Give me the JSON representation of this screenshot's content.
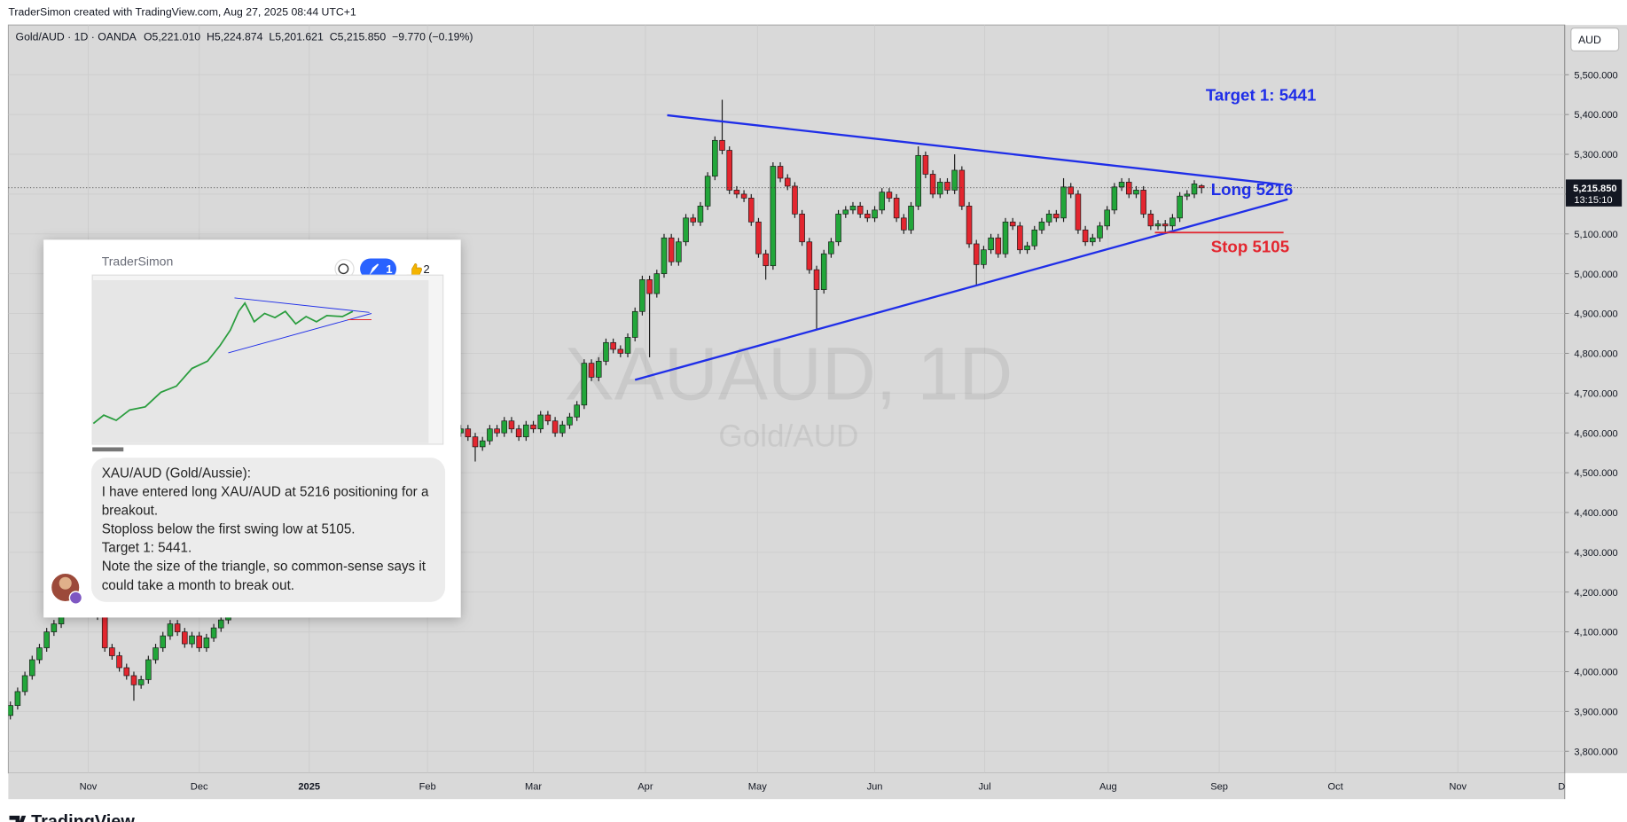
{
  "header": {
    "credit": "TraderSimon created with TradingView.com, Aug 27, 2025 08:44 UTC+1"
  },
  "chart_data": {
    "type": "candlestick",
    "title": "Gold/AUD · 1D · OANDA",
    "ohlc_legend": [
      {
        "key": "O",
        "value": "5,221.010"
      },
      {
        "key": "H",
        "value": "5,224.874"
      },
      {
        "key": "L",
        "value": "5,201.621"
      },
      {
        "key": "C",
        "value": "5,215.850"
      }
    ],
    "change": "−9.770 (−0.19%)",
    "watermark": "XAUAUD, 1D",
    "watermark_subtitle": "Gold/AUD",
    "currency": "AUD",
    "last_price": {
      "value": 5215.85,
      "label": "5,215.850"
    },
    "countdown": "13:15:10",
    "ylim": [
      3745,
      5625
    ],
    "yticks": [
      {
        "value": 3800,
        "label": "3,800.000"
      },
      {
        "value": 3900,
        "label": "3,900.000"
      },
      {
        "value": 4000,
        "label": "4,000.000"
      },
      {
        "value": 4100,
        "label": "4,100.000"
      },
      {
        "value": 4200,
        "label": "4,200.000"
      },
      {
        "value": 4300,
        "label": "4,300.000"
      },
      {
        "value": 4400,
        "label": "4,400.000"
      },
      {
        "value": 4500,
        "label": "4,500.000"
      },
      {
        "value": 4600,
        "label": "4,600.000"
      },
      {
        "value": 4700,
        "label": "4,700.000"
      },
      {
        "value": 4800,
        "label": "4,800.000"
      },
      {
        "value": 4900,
        "label": "4,900.000"
      },
      {
        "value": 5000,
        "label": "5,000.000"
      },
      {
        "value": 5100,
        "label": "5,100.000"
      },
      {
        "value": 5200,
        "label": "5,200.000"
      },
      {
        "value": 5300,
        "label": "5,300.000"
      },
      {
        "value": 5400,
        "label": "5,400.000"
      },
      {
        "value": 5500,
        "label": "5,500.000"
      }
    ],
    "xtick_labels": [
      "Nov",
      "Dec",
      "2025",
      "Feb",
      "Mar",
      "Apr",
      "May",
      "Jun",
      "Jul",
      "Aug",
      "Sep",
      "Oct",
      "Nov",
      "Dec"
    ],
    "grid": true,
    "up_color": "#22a63a",
    "down_color": "#e3262f",
    "series": [
      {
        "name": "Gold/AUD",
        "open": [
          3890,
          3915,
          3950,
          3990,
          4030,
          4060,
          4100,
          4120,
          4150,
          4170,
          4150,
          4180,
          4160,
          4140,
          4060,
          4040,
          4010,
          3990,
          3967,
          3980,
          4030,
          4060,
          4090,
          4120,
          4100,
          4070,
          4090,
          4060,
          4085,
          4110,
          4130,
          4150,
          4175,
          4190,
          4210,
          4200,
          4230,
          4250,
          4240,
          4270,
          4290,
          4300,
          4320,
          4310,
          4340,
          4360,
          4350,
          4380,
          4400,
          4420,
          4430,
          4450,
          4470,
          4460,
          4490,
          4510,
          4530,
          4520,
          4550,
          4560,
          4590,
          4620,
          4600,
          4610,
          4590,
          4565,
          4580,
          4610,
          4600,
          4630,
          4610,
          4590,
          4620,
          4610,
          4645,
          4630,
          4600,
          4620,
          4640,
          4670,
          4775,
          4740,
          4780,
          4827,
          4810,
          4800,
          4840,
          4905,
          4985,
          4950,
          5000,
          5090,
          5030,
          5080,
          5140,
          5130,
          5170,
          5245,
          5335,
          5310,
          5210,
          5200,
          5190,
          5130,
          5050,
          5020,
          5270,
          5240,
          5220,
          5150,
          5080,
          5010,
          4960,
          5050,
          5080,
          5150,
          5160,
          5170,
          5150,
          5140,
          5160,
          5205,
          5190,
          5140,
          5110,
          5170,
          5297,
          5250,
          5200,
          5230,
          5210,
          5260,
          5170,
          5075,
          5023,
          5060,
          5090,
          5050,
          5130,
          5120,
          5060,
          5070,
          5110,
          5130,
          5150,
          5140,
          5218,
          5200,
          5110,
          5080,
          5090,
          5120,
          5160,
          5218,
          5230,
          5200,
          5210,
          5150,
          5120,
          5125,
          5120,
          5140,
          5195,
          5200,
          5221.01
        ],
        "high": [
          3925,
          3960,
          4000,
          4040,
          4070,
          4110,
          4130,
          4160,
          4180,
          4180,
          4190,
          4190,
          4170,
          4150,
          4070,
          4050,
          4020,
          4000,
          3990,
          4040,
          4070,
          4100,
          4130,
          4130,
          4110,
          4100,
          4100,
          4095,
          4120,
          4140,
          4160,
          4185,
          4200,
          4220,
          4220,
          4240,
          4260,
          4260,
          4280,
          4300,
          4310,
          4330,
          4330,
          4350,
          4370,
          4370,
          4390,
          4410,
          4430,
          4440,
          4460,
          4480,
          4480,
          4500,
          4520,
          4540,
          4540,
          4560,
          4570,
          4600,
          4630,
          4630,
          4620,
          4620,
          4600,
          4590,
          4620,
          4620,
          4640,
          4640,
          4620,
          4630,
          4630,
          4655,
          4655,
          4640,
          4630,
          4650,
          4680,
          4785,
          4785,
          4790,
          4837,
          4837,
          4820,
          4850,
          4915,
          4995,
          4995,
          5010,
          5100,
          5100,
          5090,
          5150,
          5150,
          5180,
          5255,
          5345,
          5437,
          5320,
          5220,
          5210,
          5200,
          5140,
          5060,
          5280,
          5280,
          5250,
          5230,
          5160,
          5090,
          5020,
          5060,
          5090,
          5160,
          5170,
          5180,
          5180,
          5160,
          5170,
          5215,
          5215,
          5200,
          5150,
          5180,
          5320,
          5307,
          5260,
          5240,
          5240,
          5300,
          5270,
          5180,
          5085,
          5070,
          5100,
          5100,
          5140,
          5140,
          5130,
          5080,
          5120,
          5140,
          5160,
          5160,
          5240,
          5228,
          5210,
          5120,
          5100,
          5130,
          5170,
          5228,
          5240,
          5240,
          5220,
          5220,
          5160,
          5135,
          5135,
          5150,
          5205,
          5210,
          5235,
          5224.874
        ],
        "low": [
          3880,
          3905,
          3940,
          3980,
          4020,
          4050,
          4090,
          4110,
          4140,
          4140,
          4140,
          4150,
          4130,
          4050,
          4030,
          4000,
          3980,
          3927,
          3957,
          3970,
          4020,
          4050,
          4080,
          4090,
          4060,
          4060,
          4050,
          4050,
          4075,
          4100,
          4120,
          4140,
          4165,
          4180,
          4190,
          4190,
          4220,
          4230,
          4230,
          4260,
          4280,
          4290,
          4300,
          4300,
          4330,
          4340,
          4340,
          4370,
          4390,
          4410,
          4420,
          4440,
          4450,
          4450,
          4480,
          4500,
          4510,
          4510,
          4540,
          4550,
          4580,
          4590,
          4590,
          4580,
          4528,
          4555,
          4570,
          4590,
          4590,
          4600,
          4580,
          4580,
          4600,
          4600,
          4620,
          4590,
          4590,
          4610,
          4630,
          4660,
          4730,
          4730,
          4770,
          4800,
          4790,
          4790,
          4830,
          4895,
          4790,
          4940,
          4990,
          5020,
          5020,
          5070,
          5120,
          5120,
          5160,
          5235,
          5300,
          5200,
          5190,
          5180,
          5120,
          5040,
          4985,
          5010,
          5230,
          5210,
          5140,
          5070,
          5000,
          4860,
          4950,
          5040,
          5070,
          5140,
          5150,
          5140,
          5130,
          5130,
          5150,
          5180,
          5130,
          5100,
          5100,
          5160,
          5240,
          5190,
          5190,
          5200,
          5200,
          5160,
          5065,
          4970,
          5013,
          5050,
          5040,
          5040,
          5110,
          5050,
          5050,
          5060,
          5100,
          5120,
          5130,
          5130,
          5190,
          5100,
          5070,
          5070,
          5080,
          5110,
          5150,
          5208,
          5190,
          5190,
          5140,
          5110,
          5110,
          5105,
          5110,
          5130,
          5185,
          5190,
          5201.621
        ],
        "close": [
          3915,
          3950,
          3990,
          4030,
          4060,
          4100,
          4120,
          4150,
          4170,
          4150,
          4180,
          4160,
          4140,
          4060,
          4040,
          4010,
          3990,
          3967,
          3980,
          4030,
          4060,
          4090,
          4120,
          4100,
          4070,
          4090,
          4060,
          4085,
          4110,
          4130,
          4150,
          4175,
          4190,
          4210,
          4200,
          4230,
          4250,
          4240,
          4270,
          4290,
          4300,
          4320,
          4310,
          4340,
          4360,
          4350,
          4380,
          4400,
          4420,
          4430,
          4450,
          4470,
          4460,
          4490,
          4510,
          4530,
          4520,
          4550,
          4560,
          4590,
          4620,
          4600,
          4610,
          4590,
          4565,
          4580,
          4610,
          4600,
          4630,
          4610,
          4590,
          4620,
          4610,
          4645,
          4630,
          4600,
          4620,
          4640,
          4670,
          4775,
          4740,
          4780,
          4827,
          4810,
          4800,
          4840,
          4905,
          4985,
          4950,
          5000,
          5090,
          5030,
          5080,
          5140,
          5130,
          5170,
          5245,
          5335,
          5310,
          5210,
          5200,
          5190,
          5130,
          5050,
          5020,
          5270,
          5240,
          5220,
          5150,
          5080,
          5010,
          4960,
          5050,
          5080,
          5150,
          5160,
          5170,
          5150,
          5140,
          5160,
          5205,
          5190,
          5140,
          5110,
          5170,
          5297,
          5250,
          5200,
          5230,
          5210,
          5260,
          5170,
          5075,
          5023,
          5060,
          5090,
          5050,
          5130,
          5120,
          5060,
          5070,
          5110,
          5130,
          5150,
          5140,
          5218,
          5200,
          5110,
          5080,
          5090,
          5120,
          5160,
          5218,
          5230,
          5200,
          5210,
          5150,
          5120,
          5125,
          5120,
          5140,
          5195,
          5200,
          5225.62,
          5215.85
        ]
      }
    ],
    "annotations": {
      "target": "Target 1: 5441",
      "long": "Long 5216",
      "stop": "Stop 5105"
    }
  },
  "comment": {
    "author": "TraderSimon",
    "rocket_count": 1,
    "like_count": 2,
    "message": [
      "XAU/AUD (Gold/Aussie):",
      "I have entered long XAU/AUD at 5216 positioning for a breakout.",
      "Stoploss below the first swing low at 5105.",
      "Target 1: 5441.",
      "Note the size of the triangle, so common-sense says it could take a month to break out."
    ]
  },
  "footer": {
    "brand": "TradingView"
  }
}
